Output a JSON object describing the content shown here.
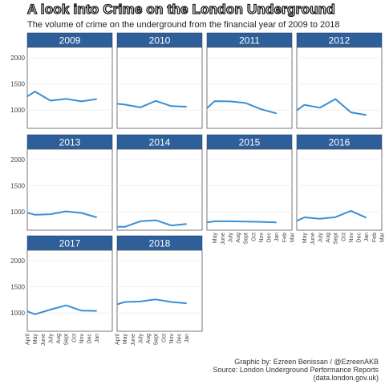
{
  "chart_data": {
    "type": "line",
    "title": "A look into Crime on the London Underground",
    "subtitle": "The volume of crime on the underground from the financial year of 2009 to 2018",
    "xlabel": "",
    "ylabel": "",
    "ylim": [
      650,
      2200
    ],
    "y_ticks": [
      1000,
      1500,
      2000
    ],
    "x_ticks": [
      "April",
      "May",
      "June",
      "July",
      "Aug",
      "Sept",
      "Oct",
      "Nov",
      "Dec",
      "Jan",
      "Feb",
      "Mar"
    ],
    "x_ticks_shown": [
      "April",
      "May",
      "June",
      "July",
      "Aug",
      "Sept",
      "Oct",
      "Nov",
      "Dec",
      "Jan",
      "Feb",
      "Mar"
    ],
    "x_ticks_bottom": {
      "col_1": [
        "April",
        "May",
        "June",
        "July",
        "Aug",
        "Sept",
        "Oct",
        "Nov",
        "Dec",
        "Jan"
      ],
      "col_2": [
        "April",
        "May",
        "June",
        "July",
        "Aug",
        "Sept",
        "Oct",
        "Nov",
        "Dec",
        "Jan"
      ],
      "col_3": [
        "May",
        "June",
        "July",
        "Aug",
        "Sept",
        "Oct",
        "Nov",
        "Dec",
        "Jan",
        "Feb",
        "Mar"
      ],
      "col_4": [
        "May",
        "June",
        "July",
        "Aug",
        "Sept",
        "Oct",
        "Nov",
        "Dec",
        "Jan",
        "Feb",
        "Mar"
      ]
    },
    "grid": true,
    "line_color": "#3a8fd6",
    "strip_color": "#2e5f9a",
    "series": [
      {
        "name": "2009",
        "points": [
          [
            "April",
            1260
          ],
          [
            "May",
            1355
          ],
          [
            "July",
            1180
          ],
          [
            "Sept",
            1215
          ],
          [
            "Nov",
            1165
          ],
          [
            "Jan",
            1210
          ]
        ]
      },
      {
        "name": "2010",
        "points": [
          [
            "April",
            1120
          ],
          [
            "May",
            1105
          ],
          [
            "July",
            1050
          ],
          [
            "Sept",
            1175
          ],
          [
            "Nov",
            1075
          ],
          [
            "Jan",
            1065
          ]
        ]
      },
      {
        "name": "2011",
        "points": [
          [
            "April",
            1035
          ],
          [
            "May",
            1170
          ],
          [
            "July",
            1165
          ],
          [
            "Sept",
            1135
          ],
          [
            "Nov",
            1015
          ],
          [
            "Jan",
            935
          ]
        ]
      },
      {
        "name": "2012",
        "points": [
          [
            "April",
            995
          ],
          [
            "May",
            1100
          ],
          [
            "July",
            1045
          ],
          [
            "Sept",
            1210
          ],
          [
            "Nov",
            955
          ],
          [
            "Jan",
            905
          ]
        ]
      },
      {
        "name": "2013",
        "points": [
          [
            "April",
            985
          ],
          [
            "May",
            945
          ],
          [
            "July",
            955
          ],
          [
            "Sept",
            1010
          ],
          [
            "Nov",
            980
          ],
          [
            "Jan",
            895
          ]
        ]
      },
      {
        "name": "2014",
        "points": [
          [
            "April",
            715
          ],
          [
            "May",
            715
          ],
          [
            "July",
            820
          ],
          [
            "Sept",
            840
          ],
          [
            "Nov",
            740
          ],
          [
            "Jan",
            770
          ]
        ]
      },
      {
        "name": "2015",
        "points": [
          [
            "April",
            800
          ],
          [
            "May",
            820
          ],
          [
            "July",
            820
          ],
          [
            "Sept",
            815
          ],
          [
            "Nov",
            810
          ],
          [
            "Jan",
            800
          ]
        ]
      },
      {
        "name": "2016",
        "points": [
          [
            "April",
            830
          ],
          [
            "May",
            895
          ],
          [
            "July",
            870
          ],
          [
            "Sept",
            900
          ],
          [
            "Nov",
            1020
          ],
          [
            "Jan",
            890
          ]
        ]
      },
      {
        "name": "2017",
        "points": [
          [
            "April",
            1030
          ],
          [
            "May",
            975
          ],
          [
            "July",
            1065
          ],
          [
            "Sept",
            1145
          ],
          [
            "Nov",
            1045
          ],
          [
            "Jan",
            1040
          ]
        ]
      },
      {
        "name": "2018",
        "points": [
          [
            "April",
            1165
          ],
          [
            "May",
            1210
          ],
          [
            "July",
            1220
          ],
          [
            "Sept",
            1260
          ],
          [
            "Nov",
            1210
          ],
          [
            "Jan",
            1185
          ]
        ]
      }
    ]
  },
  "caption": {
    "line_1": "Graphic by: Ezreen Benissan / @EzreenAKB",
    "line_2": "Source: London Underground Performance Reports",
    "line_3": "(data.london.gov.uk)"
  }
}
